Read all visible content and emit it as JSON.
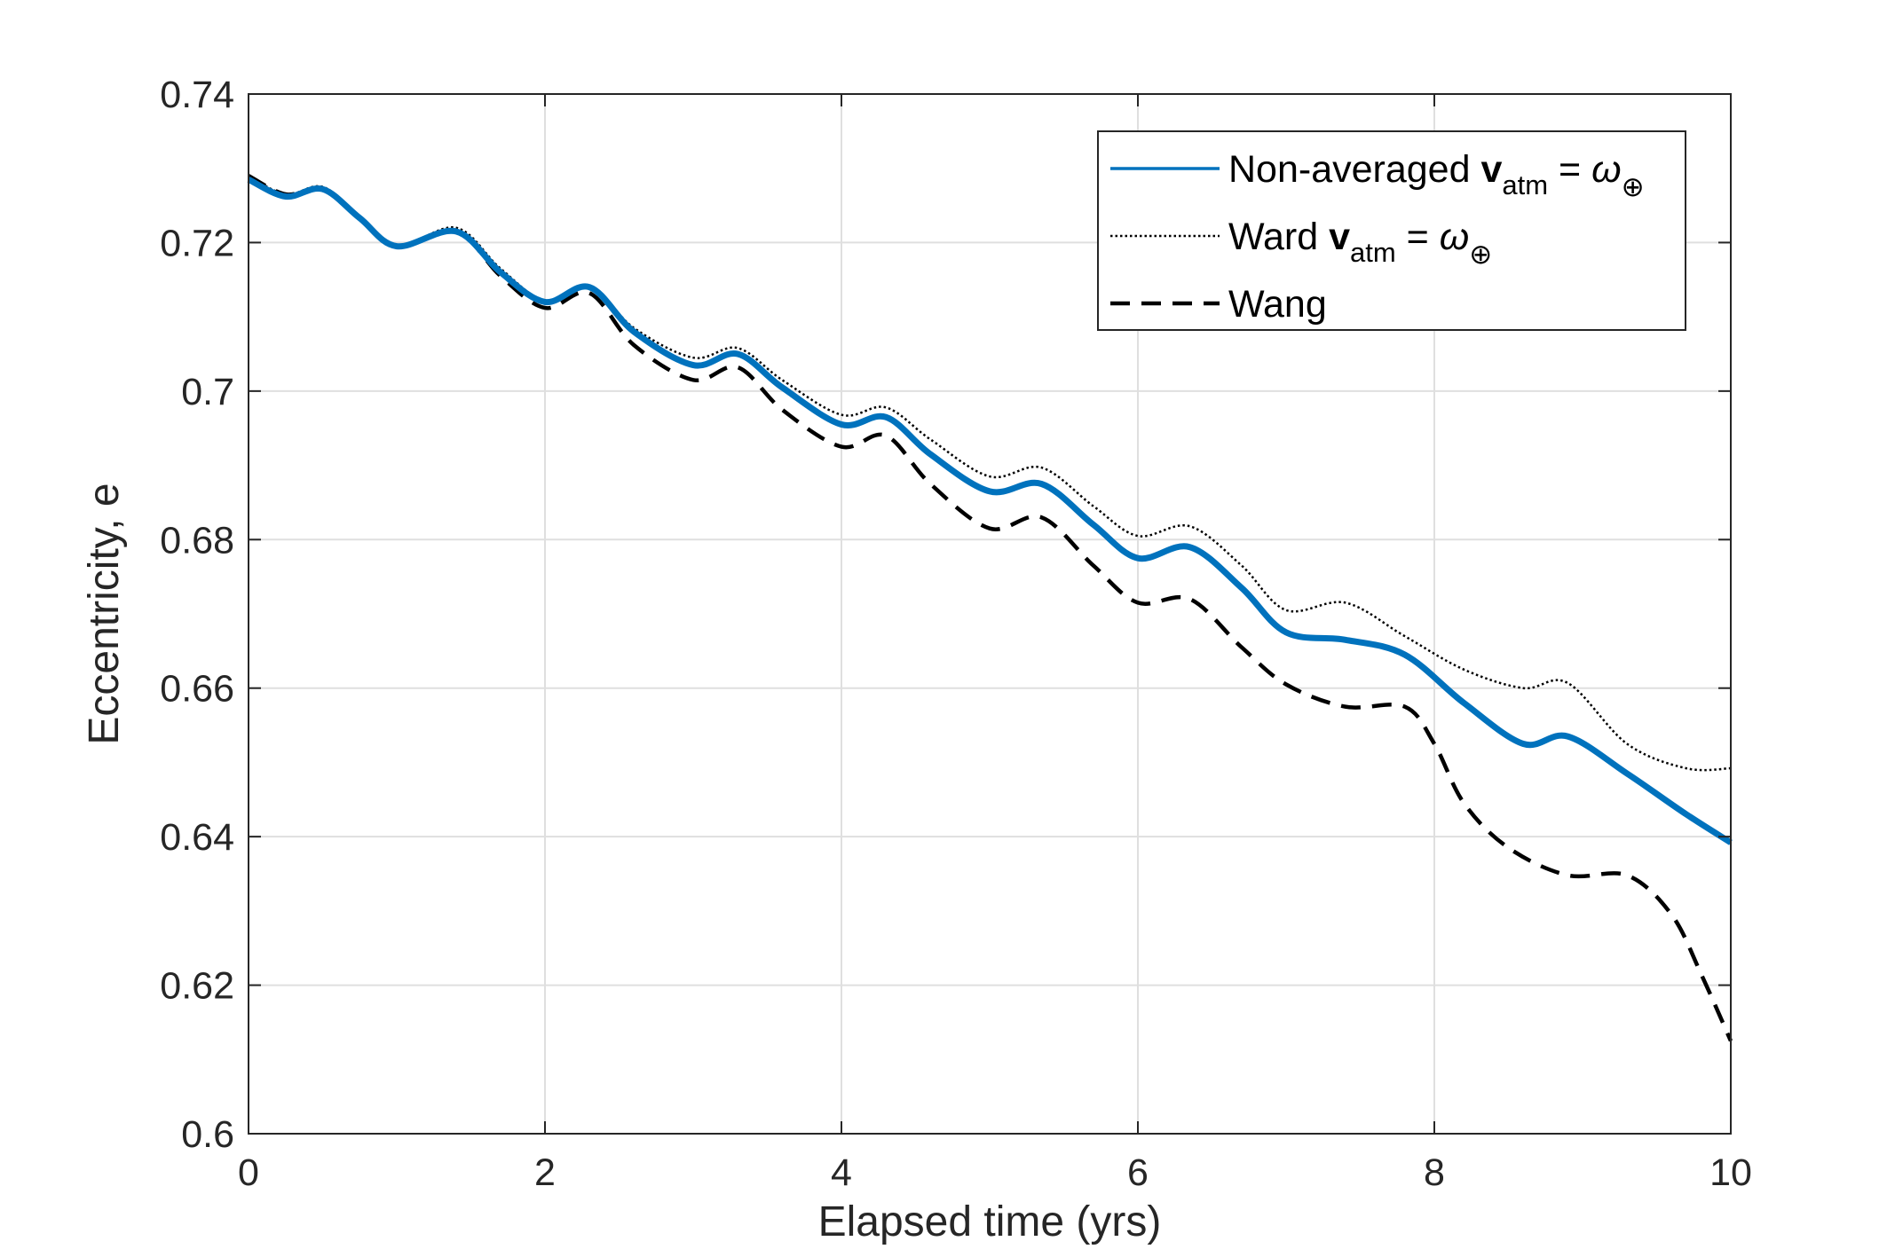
{
  "chart_data": {
    "type": "line",
    "xlabel": "Elapsed time (yrs)",
    "ylabel": "Eccentricity, e",
    "xlim": [
      0,
      10
    ],
    "ylim": [
      0.6,
      0.74
    ],
    "xticks": [
      "0",
      "2",
      "4",
      "6",
      "8",
      "10"
    ],
    "yticks": [
      "0.6",
      "0.62",
      "0.64",
      "0.66",
      "0.68",
      "0.7",
      "0.72",
      "0.74"
    ],
    "grid": true,
    "legend_position": "top-right",
    "series": [
      {
        "key": "nonavg",
        "name": "Non-averaged v_atm = ω_⊕",
        "legend_parts": [
          "Non-averaged ",
          "v",
          "atm",
          " = ",
          "ω",
          "⊕"
        ],
        "color": "#0072BD",
        "style": "solid",
        "x": [
          0,
          0.25,
          0.5,
          0.75,
          1.0,
          1.4,
          1.7,
          2.0,
          2.3,
          2.6,
          3.0,
          3.3,
          3.6,
          4.0,
          4.3,
          4.6,
          5.0,
          5.35,
          5.7,
          6.0,
          6.35,
          6.7,
          7.0,
          7.4,
          7.8,
          8.2,
          8.6,
          8.9,
          9.3,
          9.7,
          10.0
        ],
        "y": [
          0.7285,
          0.7262,
          0.7272,
          0.7233,
          0.7195,
          0.7215,
          0.716,
          0.712,
          0.714,
          0.708,
          0.7035,
          0.705,
          0.7005,
          0.6955,
          0.6965,
          0.6915,
          0.6865,
          0.6875,
          0.682,
          0.6775,
          0.679,
          0.6735,
          0.6675,
          0.6665,
          0.6645,
          0.658,
          0.6525,
          0.6535,
          0.6485,
          0.643,
          0.6392
        ]
      },
      {
        "key": "ward",
        "name": "Ward v_atm = ω_⊕",
        "legend_parts": [
          "Ward ",
          "v",
          "atm",
          " = ",
          "ω",
          "⊕"
        ],
        "color": "#000000",
        "style": "dotted",
        "x": [
          0,
          0.25,
          0.5,
          0.75,
          1.0,
          1.4,
          1.7,
          2.0,
          2.3,
          2.6,
          3.0,
          3.3,
          3.6,
          4.0,
          4.3,
          4.6,
          5.0,
          5.35,
          5.7,
          6.0,
          6.35,
          6.7,
          7.0,
          7.4,
          7.8,
          8.2,
          8.6,
          8.9,
          9.3,
          9.7,
          10.0
        ],
        "y": [
          0.729,
          0.7265,
          0.7275,
          0.7235,
          0.7195,
          0.722,
          0.7165,
          0.7122,
          0.7142,
          0.7085,
          0.7045,
          0.7058,
          0.7015,
          0.6968,
          0.6978,
          0.6935,
          0.6885,
          0.6897,
          0.6845,
          0.6805,
          0.6818,
          0.6765,
          0.6705,
          0.6715,
          0.667,
          0.6625,
          0.66,
          0.6607,
          0.6525,
          0.6492,
          0.6492
        ]
      },
      {
        "key": "wang",
        "name": "Wang",
        "legend_parts": [
          "Wang"
        ],
        "color": "#000000",
        "style": "dashed",
        "x": [
          0,
          0.25,
          0.5,
          0.75,
          1.0,
          1.4,
          1.7,
          2.0,
          2.3,
          2.6,
          3.0,
          3.3,
          3.6,
          4.0,
          4.3,
          4.6,
          5.0,
          5.35,
          5.7,
          6.0,
          6.35,
          6.7,
          7.0,
          7.4,
          7.8,
          8.0,
          8.2,
          8.5,
          8.9,
          9.3,
          9.6,
          9.8,
          10.0
        ],
        "y": [
          0.729,
          0.7265,
          0.7272,
          0.7232,
          0.7195,
          0.7215,
          0.7155,
          0.7112,
          0.7132,
          0.7062,
          0.7015,
          0.7032,
          0.6975,
          0.6925,
          0.694,
          0.6875,
          0.6815,
          0.683,
          0.6765,
          0.6715,
          0.672,
          0.6655,
          0.6605,
          0.6575,
          0.6575,
          0.6525,
          0.6445,
          0.6385,
          0.6348,
          0.6348,
          0.6295,
          0.6215,
          0.6125
        ]
      }
    ]
  }
}
